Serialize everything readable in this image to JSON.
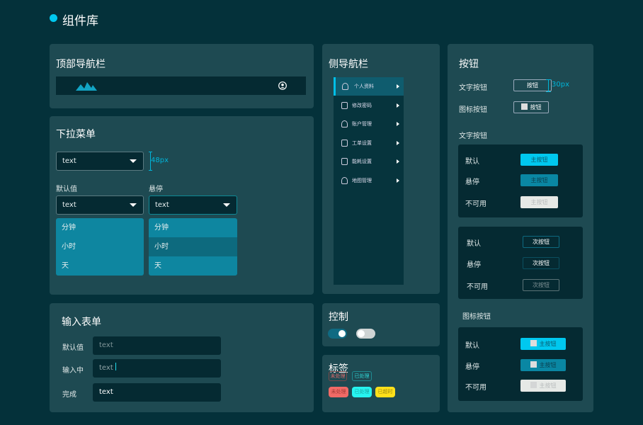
{
  "page_title": "组件库",
  "colors": {
    "accent": "#00c8ef",
    "background": "#04313a",
    "panel": "#1e4a52",
    "dropdown": "#0e86a0"
  },
  "top_nav": {
    "title": "顶部导航栏",
    "logo": "mountain-logo",
    "user_icon": "user-circle-icon"
  },
  "dropdown": {
    "title": "下拉菜单",
    "main_value": "text",
    "height_note": "48px",
    "default_label": "默认值",
    "hover_label": "悬停",
    "default_value": "text",
    "hover_value": "text",
    "options": [
      "分钟",
      "小时",
      "天"
    ]
  },
  "form": {
    "title": "输入表单",
    "rows": [
      {
        "label": "默认值",
        "value": "text"
      },
      {
        "label": "输入中",
        "value": "text"
      },
      {
        "label": "完成",
        "value": "text"
      }
    ]
  },
  "side_nav": {
    "title": "侧导航栏",
    "items": [
      {
        "label": "个人资料",
        "icon": "user-icon"
      },
      {
        "label": "修改密码",
        "icon": "lock-icon"
      },
      {
        "label": "账户管理",
        "icon": "account-icon"
      },
      {
        "label": "工单设置",
        "icon": "ticket-icon"
      },
      {
        "label": "能耗设置",
        "icon": "document-icon"
      },
      {
        "label": "地图管理",
        "icon": "map-user-icon"
      }
    ]
  },
  "control": {
    "title": "控制",
    "toggles": [
      {
        "on": true
      },
      {
        "on": false
      }
    ]
  },
  "tags": {
    "title": "标签",
    "outline": [
      "未处理",
      "已处理"
    ],
    "filled": [
      "未处理",
      "已处理",
      "已超时"
    ]
  },
  "buttons": {
    "title": "按钮",
    "text_btn_label": "文字按钮",
    "text_btn": "按钮",
    "height_note": "30px",
    "icon_btn_label": "图标按钮",
    "icon_btn": "按钮",
    "section1": "文字按钮",
    "section2": "图标按钮",
    "states": [
      "默认",
      "悬停",
      "不可用"
    ],
    "primary": "主按钮",
    "secondary": "次按钮"
  }
}
